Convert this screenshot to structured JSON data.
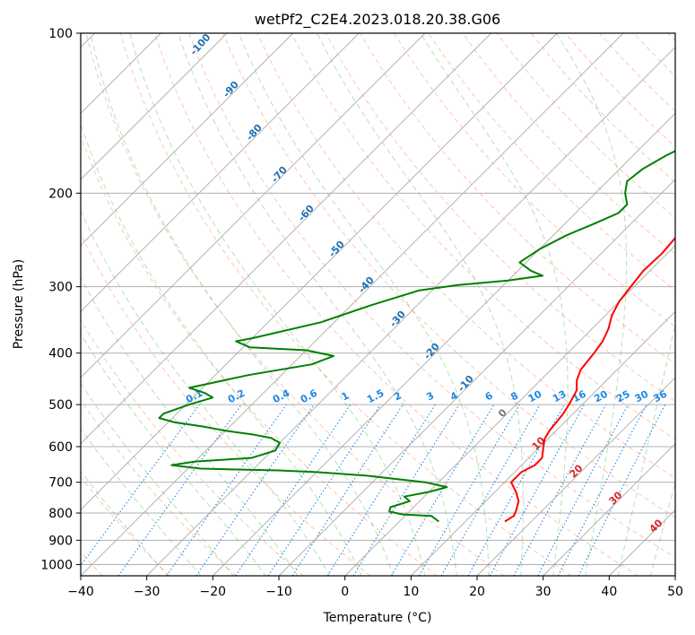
{
  "chart_data": {
    "type": "line",
    "title": "wetPf2_C2E4.2023.018.20.38.G06",
    "xlabel": "Temperature (°C)",
    "ylabel": "Pressure (hPa)",
    "xlim": [
      -40,
      50
    ],
    "ylim": [
      1050,
      100
    ],
    "y_scale": "log",
    "skew": "skew-T (isotherms slanted ~45° to the right)",
    "grid": true,
    "x_ticks": [
      -40,
      -30,
      -20,
      -10,
      0,
      10,
      20,
      30,
      40,
      50
    ],
    "y_ticks": [
      100,
      200,
      300,
      400,
      500,
      600,
      700,
      800,
      900,
      1000
    ],
    "series": [
      {
        "color": "#ff0000",
        "points": [
          [
            1,
            100
          ],
          [
            -1,
            105
          ],
          [
            -3,
            112
          ],
          [
            -5,
            120
          ],
          [
            -5.5,
            128
          ],
          [
            -5.5,
            138
          ],
          [
            -4.8,
            150
          ],
          [
            -3.8,
            165
          ],
          [
            -3,
            180
          ],
          [
            -2.5,
            190
          ],
          [
            -2,
            200
          ],
          [
            -2,
            210
          ],
          [
            -2,
            220
          ],
          [
            -1.2,
            240
          ],
          [
            -0.8,
            260
          ],
          [
            -1,
            280
          ],
          [
            -0.5,
            300
          ],
          [
            0,
            320
          ],
          [
            1,
            340
          ],
          [
            2.5,
            360
          ],
          [
            3.5,
            380
          ],
          [
            4,
            400
          ],
          [
            4.5,
            430
          ],
          [
            5.5,
            450
          ],
          [
            7,
            470
          ],
          [
            8,
            500
          ],
          [
            8.5,
            520
          ],
          [
            9,
            560
          ],
          [
            9.5,
            580
          ],
          [
            10.5,
            600
          ],
          [
            12,
            630
          ],
          [
            12,
            650
          ],
          [
            11,
            670
          ],
          [
            11,
            700
          ],
          [
            13.2,
            730
          ],
          [
            15,
            760
          ],
          [
            16,
            790
          ],
          [
            16.5,
            810
          ],
          [
            16,
            830
          ]
        ]
      },
      {
        "color": "#008000",
        "points": [
          [
            -1,
            100
          ],
          [
            -3,
            108
          ],
          [
            -4.5,
            115
          ],
          [
            -5,
            120
          ],
          [
            -4.5,
            125
          ],
          [
            -5,
            132
          ],
          [
            -7.5,
            140
          ],
          [
            -10,
            148
          ],
          [
            -12,
            155
          ],
          [
            -13.5,
            163
          ],
          [
            -15,
            170
          ],
          [
            -16.5,
            180
          ],
          [
            -17,
            190
          ],
          [
            -15.5,
            200
          ],
          [
            -13.5,
            210
          ],
          [
            -13.5,
            218
          ],
          [
            -15.5,
            228
          ],
          [
            -18,
            240
          ],
          [
            -20,
            255
          ],
          [
            -21,
            270
          ],
          [
            -18,
            280
          ],
          [
            -15.5,
            286
          ],
          [
            -20,
            292
          ],
          [
            -27,
            298
          ],
          [
            -32,
            305
          ],
          [
            -37,
            325
          ],
          [
            -42,
            350
          ],
          [
            -50,
            375
          ],
          [
            -52,
            380
          ],
          [
            -49,
            390
          ],
          [
            -40,
            395
          ],
          [
            -35,
            405
          ],
          [
            -37,
            420
          ],
          [
            -45,
            440
          ],
          [
            -52,
            465
          ],
          [
            -49,
            475
          ],
          [
            -47,
            485
          ],
          [
            -49.5,
            500
          ],
          [
            -52,
            520
          ],
          [
            -52,
            530
          ],
          [
            -49,
            540
          ],
          [
            -44,
            550
          ],
          [
            -40,
            560
          ],
          [
            -35,
            570
          ],
          [
            -32,
            578
          ],
          [
            -30,
            590
          ],
          [
            -29.5,
            610
          ],
          [
            -32,
            630
          ],
          [
            -40,
            640
          ],
          [
            -43,
            650
          ],
          [
            -38,
            660
          ],
          [
            -26,
            665
          ],
          [
            -20,
            670
          ],
          [
            -12,
            680
          ],
          [
            -2,
            700
          ],
          [
            2,
            715
          ],
          [
            0,
            730
          ],
          [
            -3,
            745
          ],
          [
            -1.5,
            760
          ],
          [
            -3.5,
            780
          ],
          [
            -3,
            795
          ],
          [
            -0.5,
            805
          ],
          [
            4,
            810
          ],
          [
            6,
            830
          ]
        ]
      }
    ],
    "mixing_ratio_labels": [
      "0.1",
      "0.2",
      "0.4",
      "0.6",
      "1",
      "1.5",
      "2",
      "3",
      "4",
      "6",
      "8",
      "10",
      "13",
      "16",
      "20",
      "25",
      "30",
      "36"
    ],
    "dry_adiabat_labels": [
      "-100",
      "-90",
      "-80",
      "-70",
      "-60",
      "-50",
      "-40",
      "-30",
      "-20",
      "-10",
      "0"
    ],
    "moist_adiabat_labels": [
      "10",
      "20",
      "30",
      "40"
    ]
  }
}
